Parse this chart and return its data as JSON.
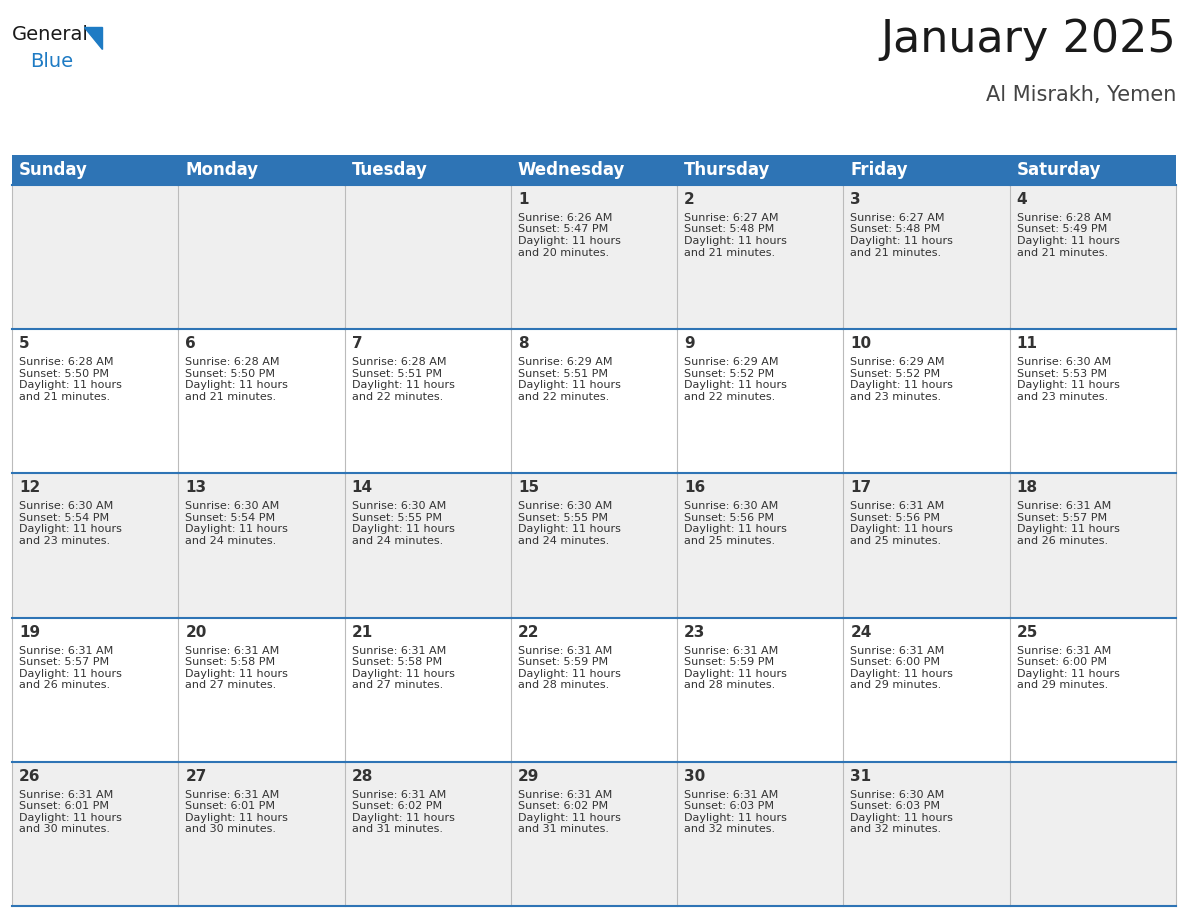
{
  "title": "January 2025",
  "subtitle": "Al Misrakh, Yemen",
  "header_bg": "#2E74B5",
  "header_text_color": "#FFFFFF",
  "day_names": [
    "Sunday",
    "Monday",
    "Tuesday",
    "Wednesday",
    "Thursday",
    "Friday",
    "Saturday"
  ],
  "title_font_size": 32,
  "subtitle_font_size": 15,
  "header_font_size": 12,
  "cell_bg_row0": "#EFEFEF",
  "cell_bg_row1": "#FFFFFF",
  "cell_bg_row2": "#EFEFEF",
  "cell_bg_row3": "#FFFFFF",
  "cell_bg_row4": "#EFEFEF",
  "border_color": "#2E74B5",
  "divider_color": "#BBBBBB",
  "day_num_color": "#333333",
  "cell_text_color": "#333333",
  "logo_general_color": "#1a1a1a",
  "logo_blue_color": "#1E7BC4",
  "calendar": [
    [
      null,
      null,
      null,
      {
        "day": 1,
        "sunrise": "6:26 AM",
        "sunset": "5:47 PM",
        "daylight": "11 hours and 20 minutes."
      },
      {
        "day": 2,
        "sunrise": "6:27 AM",
        "sunset": "5:48 PM",
        "daylight": "11 hours and 21 minutes."
      },
      {
        "day": 3,
        "sunrise": "6:27 AM",
        "sunset": "5:48 PM",
        "daylight": "11 hours and 21 minutes."
      },
      {
        "day": 4,
        "sunrise": "6:28 AM",
        "sunset": "5:49 PM",
        "daylight": "11 hours and 21 minutes."
      }
    ],
    [
      {
        "day": 5,
        "sunrise": "6:28 AM",
        "sunset": "5:50 PM",
        "daylight": "11 hours and 21 minutes."
      },
      {
        "day": 6,
        "sunrise": "6:28 AM",
        "sunset": "5:50 PM",
        "daylight": "11 hours and 21 minutes."
      },
      {
        "day": 7,
        "sunrise": "6:28 AM",
        "sunset": "5:51 PM",
        "daylight": "11 hours and 22 minutes."
      },
      {
        "day": 8,
        "sunrise": "6:29 AM",
        "sunset": "5:51 PM",
        "daylight": "11 hours and 22 minutes."
      },
      {
        "day": 9,
        "sunrise": "6:29 AM",
        "sunset": "5:52 PM",
        "daylight": "11 hours and 22 minutes."
      },
      {
        "day": 10,
        "sunrise": "6:29 AM",
        "sunset": "5:52 PM",
        "daylight": "11 hours and 23 minutes."
      },
      {
        "day": 11,
        "sunrise": "6:30 AM",
        "sunset": "5:53 PM",
        "daylight": "11 hours and 23 minutes."
      }
    ],
    [
      {
        "day": 12,
        "sunrise": "6:30 AM",
        "sunset": "5:54 PM",
        "daylight": "11 hours and 23 minutes."
      },
      {
        "day": 13,
        "sunrise": "6:30 AM",
        "sunset": "5:54 PM",
        "daylight": "11 hours and 24 minutes."
      },
      {
        "day": 14,
        "sunrise": "6:30 AM",
        "sunset": "5:55 PM",
        "daylight": "11 hours and 24 minutes."
      },
      {
        "day": 15,
        "sunrise": "6:30 AM",
        "sunset": "5:55 PM",
        "daylight": "11 hours and 24 minutes."
      },
      {
        "day": 16,
        "sunrise": "6:30 AM",
        "sunset": "5:56 PM",
        "daylight": "11 hours and 25 minutes."
      },
      {
        "day": 17,
        "sunrise": "6:31 AM",
        "sunset": "5:56 PM",
        "daylight": "11 hours and 25 minutes."
      },
      {
        "day": 18,
        "sunrise": "6:31 AM",
        "sunset": "5:57 PM",
        "daylight": "11 hours and 26 minutes."
      }
    ],
    [
      {
        "day": 19,
        "sunrise": "6:31 AM",
        "sunset": "5:57 PM",
        "daylight": "11 hours and 26 minutes."
      },
      {
        "day": 20,
        "sunrise": "6:31 AM",
        "sunset": "5:58 PM",
        "daylight": "11 hours and 27 minutes."
      },
      {
        "day": 21,
        "sunrise": "6:31 AM",
        "sunset": "5:58 PM",
        "daylight": "11 hours and 27 minutes."
      },
      {
        "day": 22,
        "sunrise": "6:31 AM",
        "sunset": "5:59 PM",
        "daylight": "11 hours and 28 minutes."
      },
      {
        "day": 23,
        "sunrise": "6:31 AM",
        "sunset": "5:59 PM",
        "daylight": "11 hours and 28 minutes."
      },
      {
        "day": 24,
        "sunrise": "6:31 AM",
        "sunset": "6:00 PM",
        "daylight": "11 hours and 29 minutes."
      },
      {
        "day": 25,
        "sunrise": "6:31 AM",
        "sunset": "6:00 PM",
        "daylight": "11 hours and 29 minutes."
      }
    ],
    [
      {
        "day": 26,
        "sunrise": "6:31 AM",
        "sunset": "6:01 PM",
        "daylight": "11 hours and 30 minutes."
      },
      {
        "day": 27,
        "sunrise": "6:31 AM",
        "sunset": "6:01 PM",
        "daylight": "11 hours and 30 minutes."
      },
      {
        "day": 28,
        "sunrise": "6:31 AM",
        "sunset": "6:02 PM",
        "daylight": "11 hours and 31 minutes."
      },
      {
        "day": 29,
        "sunrise": "6:31 AM",
        "sunset": "6:02 PM",
        "daylight": "11 hours and 31 minutes."
      },
      {
        "day": 30,
        "sunrise": "6:31 AM",
        "sunset": "6:03 PM",
        "daylight": "11 hours and 32 minutes."
      },
      {
        "day": 31,
        "sunrise": "6:30 AM",
        "sunset": "6:03 PM",
        "daylight": "11 hours and 32 minutes."
      },
      null
    ]
  ]
}
